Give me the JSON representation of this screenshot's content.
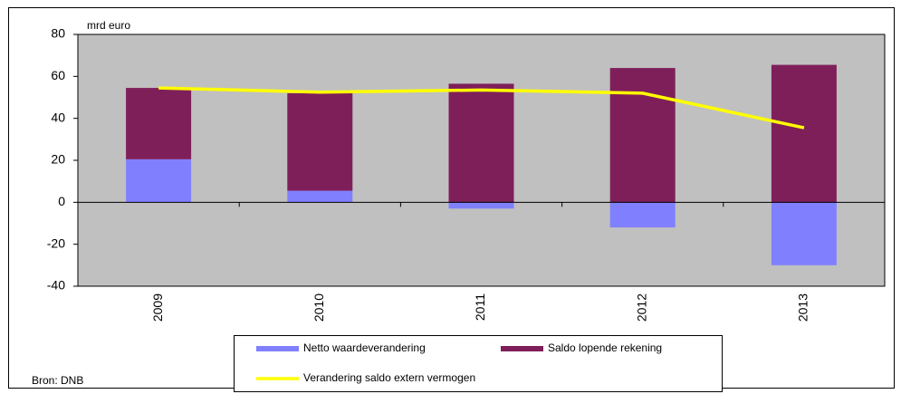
{
  "chart_data": {
    "type": "stacked_bar_line",
    "y_label": "mrd euro",
    "source": "Bron: DNB",
    "categories": [
      "2009",
      "2010",
      "2011",
      "2012",
      "2013"
    ],
    "series": [
      {
        "name": "Netto waardeverandering",
        "type": "bar",
        "color": "#8080ff",
        "values": [
          20.5,
          5.5,
          -3,
          -12,
          -30
        ]
      },
      {
        "name": "Saldo lopende rekening",
        "type": "bar",
        "color": "#7f1f5a",
        "values": [
          34,
          46.5,
          56.5,
          64,
          65.5
        ]
      },
      {
        "name": "Verandering saldo extern vermogen",
        "type": "line",
        "color": "#ffff00",
        "values": [
          54.5,
          52.5,
          53.5,
          52,
          35.5
        ]
      }
    ],
    "ylim": [
      -40,
      80
    ],
    "yticks": [
      -40,
      -20,
      0,
      20,
      40,
      60,
      80
    ],
    "grid": false
  }
}
